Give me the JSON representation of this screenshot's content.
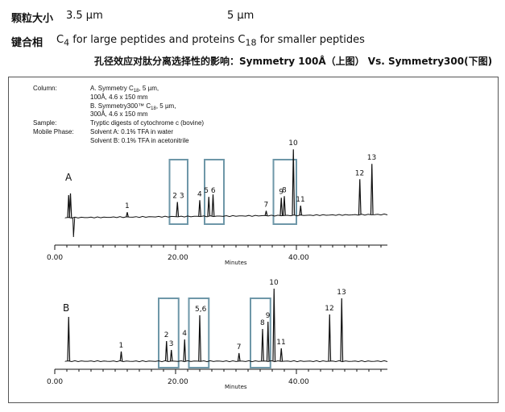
{
  "header": {
    "row1_label": "颗粒大小",
    "row1_value_a": "3.5 µm",
    "row1_value_b": "5 µm",
    "row2_label": "键合相",
    "row2_c4_base": "C",
    "row2_c4_sub": "4",
    "row2_c4_text": " for large peptides and proteins ",
    "row2_c18_base": "C",
    "row2_c18_sub": "18",
    "row2_c18_text": " for smaller peptides",
    "title": "孔径效应对肽分离选择性的影响：Symmetry 100Å（上图） Vs. Symmetry300(下图)"
  },
  "legend": {
    "column_label": "Column:",
    "column_a1_pre": "A. Symmetry C",
    "column_a1_sub": "18",
    "column_a1_post": ", 5 µm,",
    "column_a2": "100Å, 4.6 x 150 mm",
    "column_b1_pre": "B. Symmetry300™ C",
    "column_b1_sub": "18",
    "column_b1_post": ", 5 µm,",
    "column_b2": "300Å, 4.6 x 150 mm",
    "sample_label": "Sample:",
    "sample_value": "Tryptic digests of cytochrome c (bovine)",
    "mobile_label": "Mobile Phase:",
    "mobile_a": "Solvent A: 0.1% TFA in water",
    "mobile_b": "Solvent B: 0.1% TFA in acetonitrile"
  },
  "colors": {
    "trace": "#111111",
    "highlight_box": "#6e97a8"
  },
  "chart_data": [
    {
      "type": "line",
      "panel_label": "A",
      "xlabel": "Minutes",
      "xlim": [
        0,
        55
      ],
      "xticks": [
        0,
        20,
        40
      ],
      "xtick_labels": [
        "0.00",
        "20.00",
        "40.00"
      ],
      "peaks": [
        {
          "label": "",
          "x": 2.3,
          "h": 0.28
        },
        {
          "label": "",
          "x": 2.6,
          "h": 0.3
        },
        {
          "label": "1",
          "x": 12.0,
          "h": 0.06
        },
        {
          "label": "2 3",
          "x": 20.3,
          "h": 0.18
        },
        {
          "label": "4",
          "x": 24.0,
          "h": 0.2
        },
        {
          "label": "5 6",
          "x": 25.5,
          "h": 0.24
        },
        {
          "label": "",
          "x": 26.2,
          "h": 0.27
        },
        {
          "label": "7",
          "x": 35.0,
          "h": 0.06
        },
        {
          "label": "9",
          "x": 37.5,
          "h": 0.22
        },
        {
          "label": "8",
          "x": 38.0,
          "h": 0.24
        },
        {
          "label": "10",
          "x": 39.5,
          "h": 0.82
        },
        {
          "label": "11",
          "x": 40.7,
          "h": 0.12
        },
        {
          "label": "12",
          "x": 50.5,
          "h": 0.44
        },
        {
          "label": "13",
          "x": 52.5,
          "h": 0.63
        }
      ],
      "highlight_ranges": [
        [
          19,
          22
        ],
        [
          24.8,
          28
        ],
        [
          36.2,
          40
        ]
      ]
    },
    {
      "type": "line",
      "panel_label": "B",
      "xlabel": "Minutes",
      "xlim": [
        0,
        55
      ],
      "xticks": [
        0,
        20,
        40
      ],
      "xtick_labels": [
        "0.00",
        "20.00",
        "40.00"
      ],
      "peaks": [
        {
          "label": "",
          "x": 2.3,
          "h": 0.55
        },
        {
          "label": "1",
          "x": 11.0,
          "h": 0.12
        },
        {
          "label": "2",
          "x": 18.5,
          "h": 0.25
        },
        {
          "label": "3",
          "x": 19.3,
          "h": 0.14
        },
        {
          "label": "4",
          "x": 21.5,
          "h": 0.27
        },
        {
          "label": "5,6",
          "x": 24.0,
          "h": 0.57
        },
        {
          "label": "7",
          "x": 30.5,
          "h": 0.1
        },
        {
          "label": "8",
          "x": 34.4,
          "h": 0.4
        },
        {
          "label": "9",
          "x": 35.3,
          "h": 0.49
        },
        {
          "label": "10",
          "x": 36.3,
          "h": 0.9
        },
        {
          "label": "11",
          "x": 37.5,
          "h": 0.16
        },
        {
          "label": "12",
          "x": 45.5,
          "h": 0.58
        },
        {
          "label": "13",
          "x": 47.5,
          "h": 0.78
        }
      ],
      "highlight_ranges": [
        [
          17.2,
          20.5
        ],
        [
          22.2,
          25.5
        ],
        [
          32.4,
          35.7
        ]
      ]
    }
  ]
}
